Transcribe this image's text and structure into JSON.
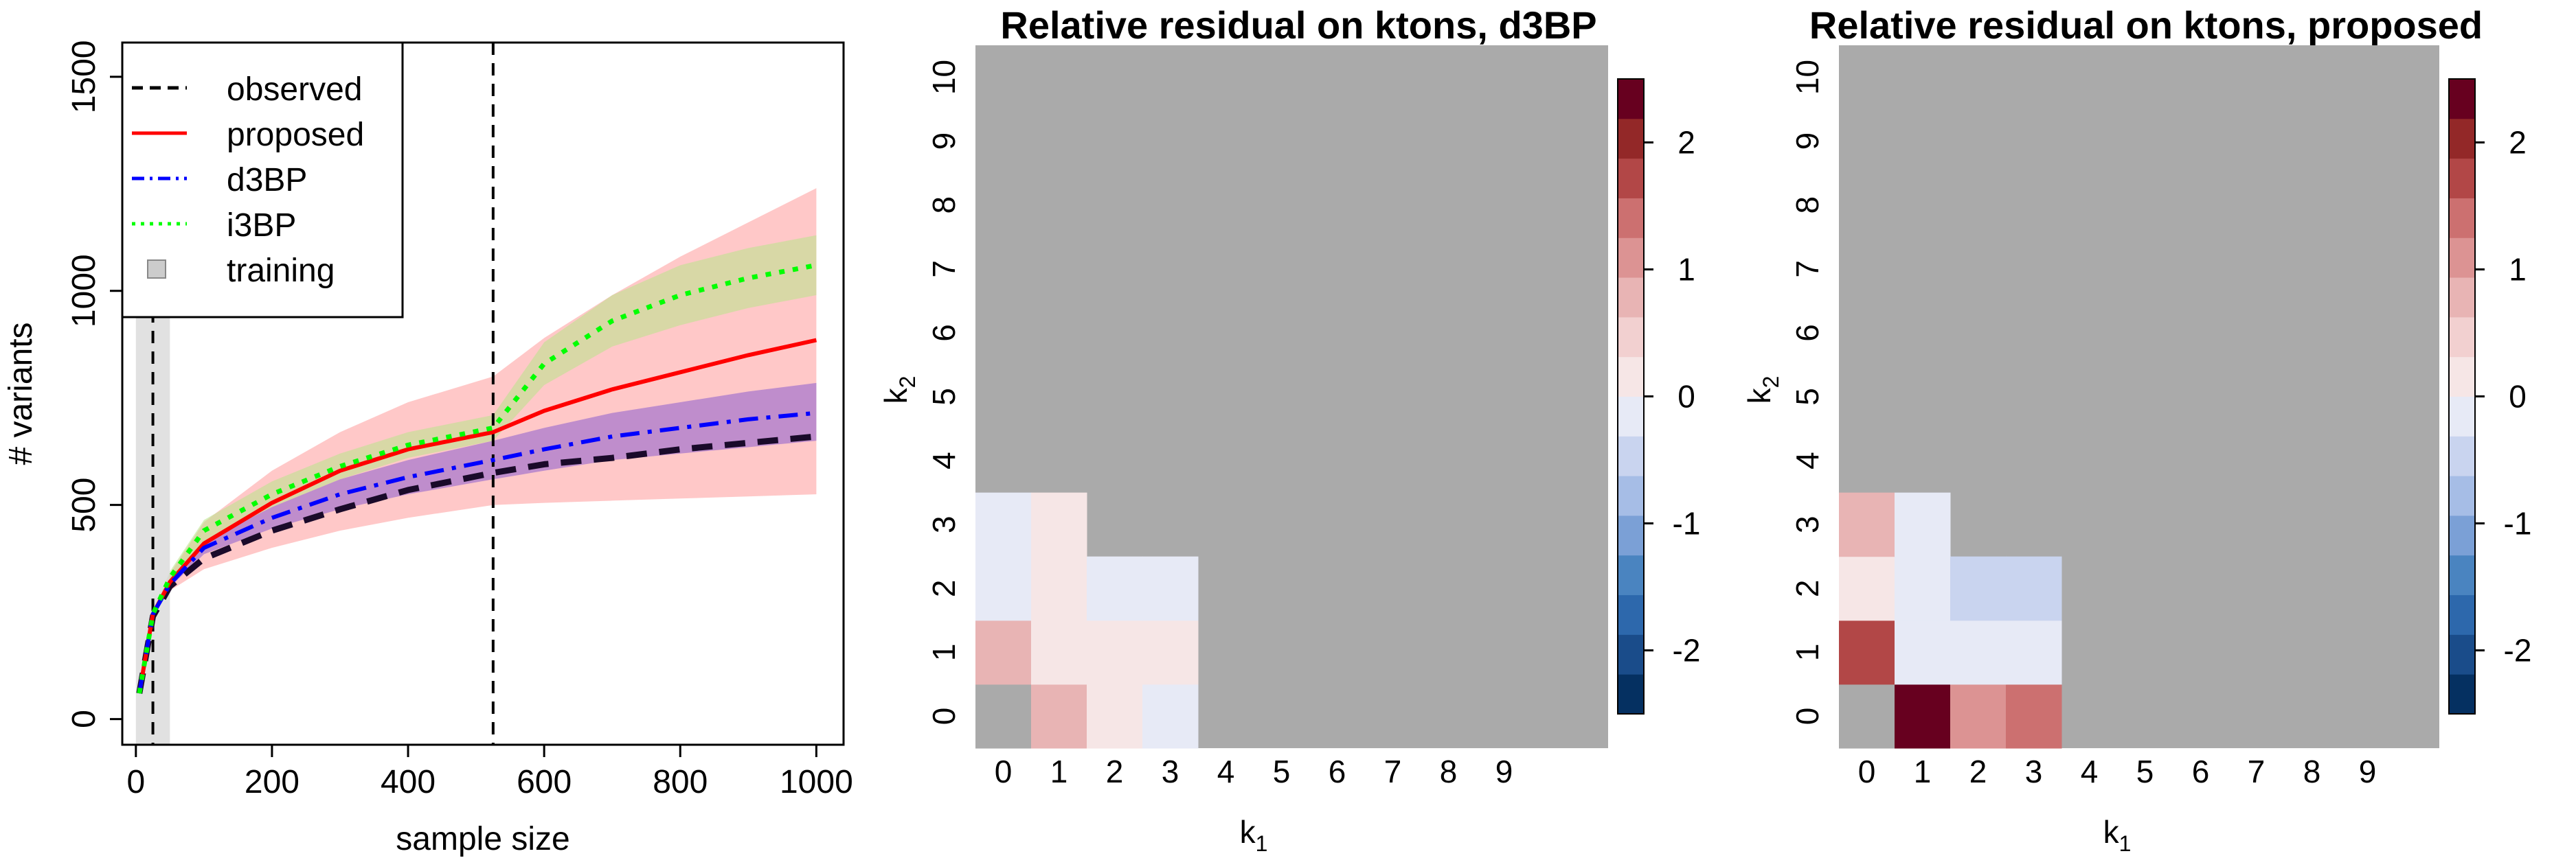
{
  "chart_data": [
    {
      "type": "line",
      "title": "",
      "xlabel": "sample size",
      "ylabel": "# variants",
      "xlim": [
        -20,
        1040
      ],
      "ylim": [
        -60,
        1580
      ],
      "xticks": [
        0,
        200,
        400,
        600,
        800,
        1000
      ],
      "yticks": [
        0,
        500,
        1000,
        1500
      ],
      "xtick_labels": [
        "0",
        "200",
        "400",
        "600",
        "800",
        "1000"
      ],
      "ytick_labels": [
        "0",
        "500",
        "1000",
        "1500"
      ],
      "vlines": [
        25,
        525
      ],
      "training_region": [
        0,
        50
      ],
      "legend_position": "top-left",
      "legend": [
        {
          "label": "observed",
          "color": "#000000",
          "style": "dashed"
        },
        {
          "label": "proposed",
          "color": "#ff0000",
          "style": "solid"
        },
        {
          "label": "d3BP",
          "color": "#0000ff",
          "style": "dashdot"
        },
        {
          "label": "i3BP",
          "color": "#00ff00",
          "style": "dotted"
        },
        {
          "label": "training",
          "color": "#cccccc",
          "style": "box"
        }
      ],
      "x": [
        5,
        25,
        50,
        100,
        200,
        300,
        400,
        525,
        600,
        700,
        800,
        900,
        1000
      ],
      "series": [
        {
          "name": "observed",
          "color": "#1a0a2a",
          "values": [
            60,
            240,
            310,
            375,
            440,
            490,
            535,
            575,
            595,
            610,
            630,
            645,
            660
          ]
        },
        {
          "name": "proposed",
          "color": "#ff0000",
          "values": [
            60,
            245,
            320,
            410,
            505,
            580,
            630,
            670,
            720,
            770,
            810,
            850,
            885
          ],
          "band_lower": [
            60,
            240,
            300,
            350,
            400,
            440,
            470,
            500,
            505,
            510,
            515,
            520,
            525
          ],
          "band_upper": [
            60,
            250,
            340,
            460,
            580,
            670,
            740,
            800,
            890,
            990,
            1080,
            1160,
            1240
          ],
          "band_color": "#ffb0b0"
        },
        {
          "name": "d3BP",
          "color": "#0000ff",
          "values": [
            60,
            245,
            315,
            400,
            470,
            525,
            565,
            605,
            630,
            660,
            680,
            700,
            715
          ],
          "band_lower": [
            60,
            240,
            308,
            385,
            445,
            490,
            525,
            560,
            580,
            605,
            620,
            635,
            650
          ],
          "band_upper": [
            60,
            250,
            322,
            415,
            495,
            560,
            605,
            650,
            680,
            715,
            740,
            765,
            785
          ],
          "band_color": "#8a5ccf"
        },
        {
          "name": "i3BP",
          "color": "#00ff00",
          "values": [
            60,
            245,
            330,
            440,
            525,
            590,
            640,
            680,
            830,
            930,
            990,
            1030,
            1060
          ],
          "band_lower": [
            60,
            240,
            315,
            415,
            495,
            560,
            610,
            650,
            780,
            870,
            920,
            960,
            990
          ],
          "band_upper": [
            60,
            250,
            345,
            465,
            555,
            620,
            670,
            710,
            880,
            990,
            1060,
            1100,
            1130
          ],
          "band_color": "#b8e68a"
        }
      ]
    },
    {
      "type": "heatmap",
      "title": "Relative residual on ktons, d3BP",
      "xlabel": "k",
      "xlabel_sub": "1",
      "ylabel": "k",
      "ylabel_sub": "2",
      "x_categories": [
        "0",
        "1",
        "2",
        "3",
        "4",
        "5",
        "6",
        "7",
        "8",
        "9"
      ],
      "y_categories": [
        "0",
        "1",
        "2",
        "3",
        "4",
        "5",
        "6",
        "7",
        "8",
        "9",
        "10"
      ],
      "na_color": "#aaaaaa",
      "cells": [
        {
          "k1": 0,
          "k2": 0,
          "value": null
        },
        {
          "k1": 1,
          "k2": 0,
          "value": 0.7
        },
        {
          "k1": 2,
          "k2": 0,
          "value": 0.2
        },
        {
          "k1": 3,
          "k2": 0,
          "value": -0.2
        },
        {
          "k1": 0,
          "k2": 1,
          "value": 0.7
        },
        {
          "k1": 1,
          "k2": 1,
          "value": 0.2
        },
        {
          "k1": 2,
          "k2": 1,
          "value": 0.2
        },
        {
          "k1": 3,
          "k2": 1,
          "value": 0.2
        },
        {
          "k1": 0,
          "k2": 2,
          "value": -0.2
        },
        {
          "k1": 1,
          "k2": 2,
          "value": 0.2
        },
        {
          "k1": 2,
          "k2": 2,
          "value": -0.2
        },
        {
          "k1": 3,
          "k2": 2,
          "value": -0.2
        },
        {
          "k1": 0,
          "k2": 3,
          "value": -0.2
        },
        {
          "k1": 1,
          "k2": 3,
          "value": 0.2
        }
      ],
      "colorbar": {
        "range": [
          -2.5,
          2.5
        ],
        "ticks": [
          -2,
          -1,
          0,
          1,
          2
        ],
        "tick_labels": [
          "-2",
          "-1",
          "0",
          "1",
          "2"
        ],
        "colors": [
          "#053061",
          "#1a4c8a",
          "#2d68ac",
          "#4a84c0",
          "#7ba0d6",
          "#a6bde6",
          "#c9d4ef",
          "#e7eaf6",
          "#f6e6e6",
          "#f2d0d0",
          "#e8b4b4",
          "#dc9393",
          "#cc7070",
          "#b24747",
          "#932828",
          "#67001f"
        ]
      }
    },
    {
      "type": "heatmap",
      "title": "Relative residual on ktons, proposed",
      "xlabel": "k",
      "xlabel_sub": "1",
      "ylabel": "k",
      "ylabel_sub": "2",
      "x_categories": [
        "0",
        "1",
        "2",
        "3",
        "4",
        "5",
        "6",
        "7",
        "8",
        "9"
      ],
      "y_categories": [
        "0",
        "1",
        "2",
        "3",
        "4",
        "5",
        "6",
        "7",
        "8",
        "9",
        "10"
      ],
      "na_color": "#aaaaaa",
      "cells": [
        {
          "k1": 0,
          "k2": 0,
          "value": null
        },
        {
          "k1": 1,
          "k2": 0,
          "value": 2.2
        },
        {
          "k1": 2,
          "k2": 0,
          "value": 1.0
        },
        {
          "k1": 3,
          "k2": 0,
          "value": 1.3
        },
        {
          "k1": 0,
          "k2": 1,
          "value": 1.7
        },
        {
          "k1": 1,
          "k2": 1,
          "value": -0.2
        },
        {
          "k1": 2,
          "k2": 1,
          "value": -0.2
        },
        {
          "k1": 3,
          "k2": 1,
          "value": -0.2
        },
        {
          "k1": 0,
          "k2": 2,
          "value": 0.2
        },
        {
          "k1": 1,
          "k2": 2,
          "value": -0.2
        },
        {
          "k1": 2,
          "k2": 2,
          "value": -0.6
        },
        {
          "k1": 3,
          "k2": 2,
          "value": -0.6
        },
        {
          "k1": 0,
          "k2": 3,
          "value": 0.7
        },
        {
          "k1": 1,
          "k2": 3,
          "value": -0.2
        }
      ],
      "colorbar": {
        "range": [
          -2.5,
          2.5
        ],
        "ticks": [
          -2,
          -1,
          0,
          1,
          2
        ],
        "tick_labels": [
          "-2",
          "-1",
          "0",
          "1",
          "2"
        ],
        "colors": [
          "#053061",
          "#1a4c8a",
          "#2d68ac",
          "#4a84c0",
          "#7ba0d6",
          "#a6bde6",
          "#c9d4ef",
          "#e7eaf6",
          "#f6e6e6",
          "#f2d0d0",
          "#e8b4b4",
          "#dc9393",
          "#cc7070",
          "#b24747",
          "#932828",
          "#67001f"
        ]
      }
    }
  ]
}
